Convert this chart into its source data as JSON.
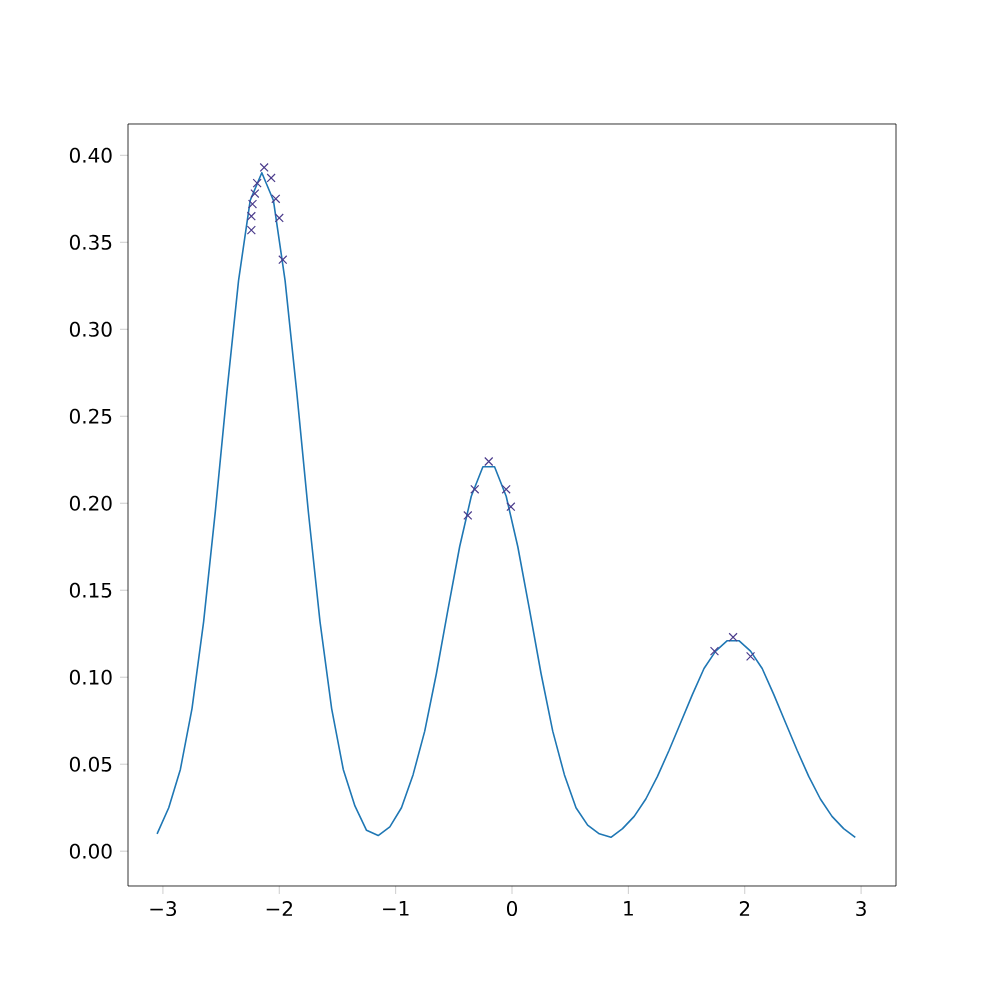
{
  "chart_data": {
    "type": "line",
    "xlim": [
      -3.3,
      3.3
    ],
    "ylim": [
      -0.02,
      0.418
    ],
    "xticks": [
      {
        "value": -3,
        "label": "−3"
      },
      {
        "value": -2,
        "label": "−2"
      },
      {
        "value": -1,
        "label": "−1"
      },
      0,
      1,
      2,
      3
    ],
    "yticks": [
      {
        "value": 0,
        "label": "0.00"
      },
      {
        "value": 0.05,
        "label": "0.05"
      },
      {
        "value": 0.1,
        "label": "0.10"
      },
      {
        "value": 0.15,
        "label": "0.15"
      },
      {
        "value": 0.2,
        "label": "0.20"
      },
      {
        "value": 0.25,
        "label": "0.25"
      },
      {
        "value": 0.3,
        "label": "0.30"
      },
      {
        "value": 0.35,
        "label": "0.35"
      },
      {
        "value": 0.4,
        "label": "0.40"
      }
    ],
    "grid": false,
    "series": [
      {
        "color": "#1f77b4",
        "line_style": "solid",
        "marker": "none",
        "x": [
          -3.05,
          -2.95,
          -2.85,
          -2.75,
          -2.65,
          -2.55,
          -2.45,
          -2.35,
          -2.25,
          -2.15,
          -2.05,
          -1.95,
          -1.85,
          -1.75,
          -1.65,
          -1.55,
          -1.45,
          -1.35,
          -1.25,
          -1.15,
          -1.05,
          -0.95,
          -0.85,
          -0.75,
          -0.65,
          -0.55,
          -0.45,
          -0.35,
          -0.25,
          -0.15,
          -0.05,
          0.05,
          0.15,
          0.25,
          0.35,
          0.45,
          0.55,
          0.65,
          0.75,
          0.85,
          0.95,
          1.05,
          1.15,
          1.25,
          1.35,
          1.45,
          1.55,
          1.65,
          1.75,
          1.85,
          1.95,
          2.05,
          2.15,
          2.25,
          2.35,
          2.45,
          2.55,
          2.65,
          2.75,
          2.85,
          2.95
        ],
        "values": [
          0.01,
          0.025,
          0.047,
          0.082,
          0.132,
          0.195,
          0.264,
          0.328,
          0.374,
          0.39,
          0.374,
          0.328,
          0.264,
          0.195,
          0.132,
          0.082,
          0.047,
          0.026,
          0.012,
          0.009,
          0.014,
          0.025,
          0.044,
          0.069,
          0.102,
          0.139,
          0.175,
          0.204,
          0.221,
          0.221,
          0.204,
          0.175,
          0.139,
          0.102,
          0.069,
          0.044,
          0.025,
          0.015,
          0.01,
          0.008,
          0.013,
          0.02,
          0.03,
          0.043,
          0.058,
          0.074,
          0.09,
          0.105,
          0.115,
          0.121,
          0.121,
          0.115,
          0.105,
          0.09,
          0.074,
          0.058,
          0.043,
          0.03,
          0.02,
          0.013,
          0.008
        ]
      },
      {
        "type": "scatter",
        "color": "#4b3c8c",
        "marker": "cross",
        "x": [
          -2.24,
          -2.24,
          -2.23,
          -2.21,
          -2.19,
          -2.13,
          -2.07,
          -2.03,
          -2.0,
          -1.97,
          -0.38,
          -0.32,
          -0.2,
          -0.05,
          -0.01,
          1.74,
          1.9,
          2.05
        ],
        "values": [
          0.357,
          0.365,
          0.372,
          0.378,
          0.384,
          0.393,
          0.387,
          0.375,
          0.364,
          0.34,
          0.193,
          0.208,
          0.224,
          0.208,
          0.198,
          0.115,
          0.123,
          0.112
        ]
      }
    ]
  }
}
